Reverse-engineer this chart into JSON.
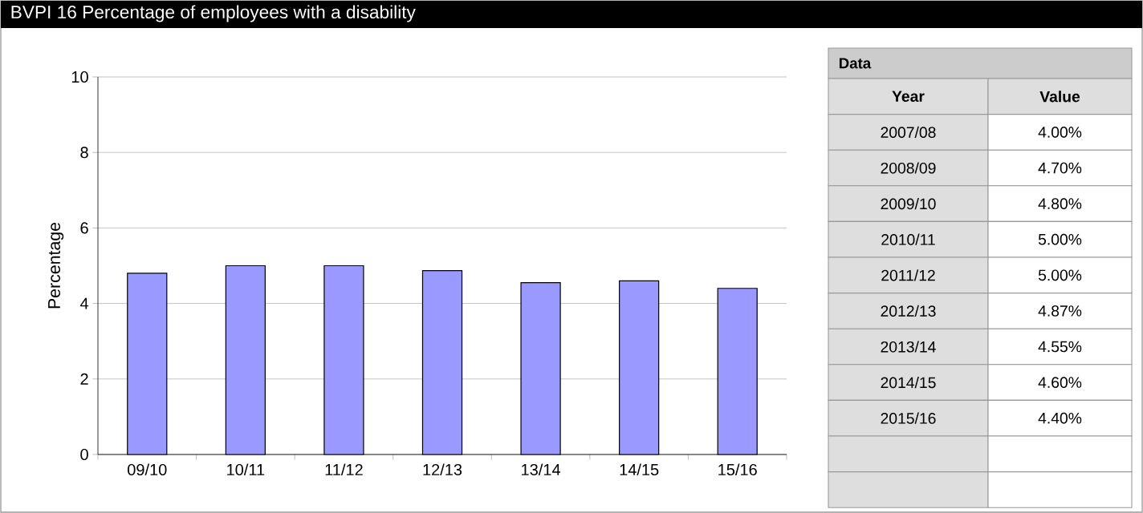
{
  "chart_data": [
    {
      "type": "bar",
      "title": "BVPI 16  Percentage of employees with a disability",
      "ylabel": "Percentage",
      "categories": [
        "09/10",
        "10/11",
        "11/12",
        "12/13",
        "13/14",
        "14/15",
        "15/16"
      ],
      "values": [
        4.8,
        5.0,
        5.0,
        4.87,
        4.55,
        4.6,
        4.4
      ],
      "color": "#9999ff",
      "ylim": [
        0,
        10
      ],
      "yticks": [
        0,
        2,
        4,
        6,
        8,
        10
      ],
      "grid": "y"
    },
    {
      "type": "other",
      "title": "Data",
      "annotations": [
        "Year",
        "Value",
        "2007/08",
        "4.00%",
        "2008/09",
        "4.70%",
        "2009/10",
        "4.80%",
        "2010/11",
        "5.00%",
        "2011/12",
        "5.00%",
        "2012/13",
        "4.87%",
        "2013/14",
        "4.55%",
        "2014/15",
        "4.60%",
        "2015/16",
        "4.40%"
      ]
    }
  ]
}
